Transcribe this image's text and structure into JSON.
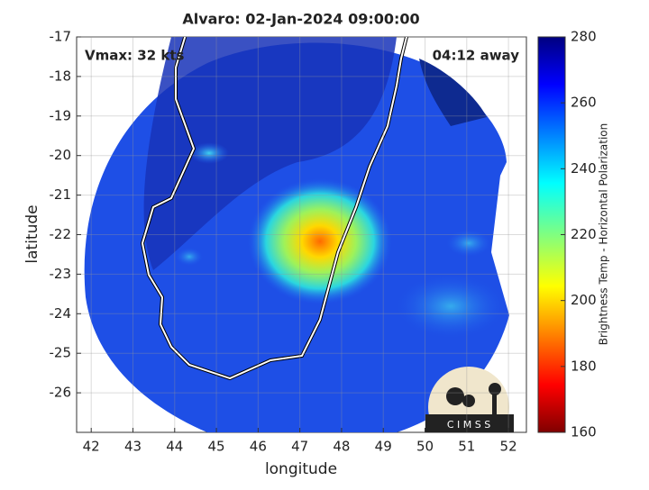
{
  "chart_data": {
    "type": "map",
    "title": "Alvaro: 02-Jan-2024 09:00:00",
    "xlabel": "longitude",
    "ylabel": "latitude",
    "xlim": [
      41.65,
      52.43
    ],
    "ylim": [
      -27,
      -17
    ],
    "xticks": [
      42,
      43,
      44,
      45,
      46,
      47,
      48,
      49,
      50,
      51,
      52
    ],
    "yticks": [
      -26,
      -25,
      -24,
      -23,
      -22,
      -21,
      -20,
      -19,
      -18,
      -17
    ],
    "grid": true,
    "annotations": [
      "Vmax: 32 kts",
      "04:12 away"
    ],
    "logo_text": "C I M S S",
    "colorbar": {
      "label": "Brightness Temp - Horizontal Polarization",
      "lim": [
        160,
        280
      ],
      "ticks": [
        160,
        180,
        200,
        220,
        240,
        260,
        280
      ]
    }
  }
}
